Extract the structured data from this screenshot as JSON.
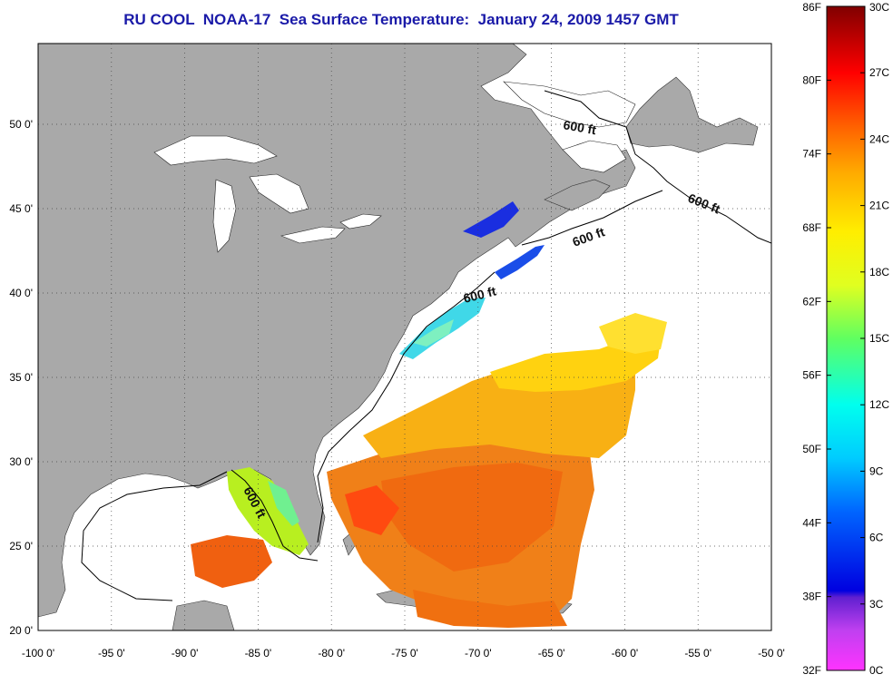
{
  "title": "RU COOL  NOAA-17  Sea Surface Temperature:  January 24, 2009 1457 GMT",
  "map": {
    "lon_labels": [
      "-100 0'",
      "-95 0'",
      "-90 0'",
      "-85 0'",
      "-80 0'",
      "-75 0'",
      "-70 0'",
      "-65 0'",
      "-60 0'",
      "-55 0'",
      "-50 0'"
    ],
    "lat_labels": [
      "50 0'",
      "45 0'",
      "40 0'",
      "35 0'",
      "30 0'",
      "25 0'",
      "20 0'"
    ],
    "contour_labels": [
      "600 ft",
      "600 ft",
      "600 ft",
      "600 ft",
      "600 ft"
    ],
    "colors": {
      "land": "#a9a9a9",
      "ocean_no_data": "#ffffff",
      "title": "#1a1aa8",
      "isobath": "#000000"
    }
  },
  "colorbar": {
    "fahrenheit_labels": [
      "86F",
      "80F",
      "74F",
      "68F",
      "62F",
      "56F",
      "50F",
      "44F",
      "38F",
      "32F"
    ],
    "celsius_labels": [
      "30C",
      "27C",
      "24C",
      "21C",
      "18C",
      "15C",
      "12C",
      "9C",
      "6C",
      "3C",
      "0C"
    ],
    "colormap": [
      "#ff40ff",
      "#8030e0",
      "#0000ff",
      "#00aaff",
      "#00ffff",
      "#40ff80",
      "#ffff00",
      "#ffb000",
      "#ff6000",
      "#ff0000",
      "#800000"
    ]
  }
}
